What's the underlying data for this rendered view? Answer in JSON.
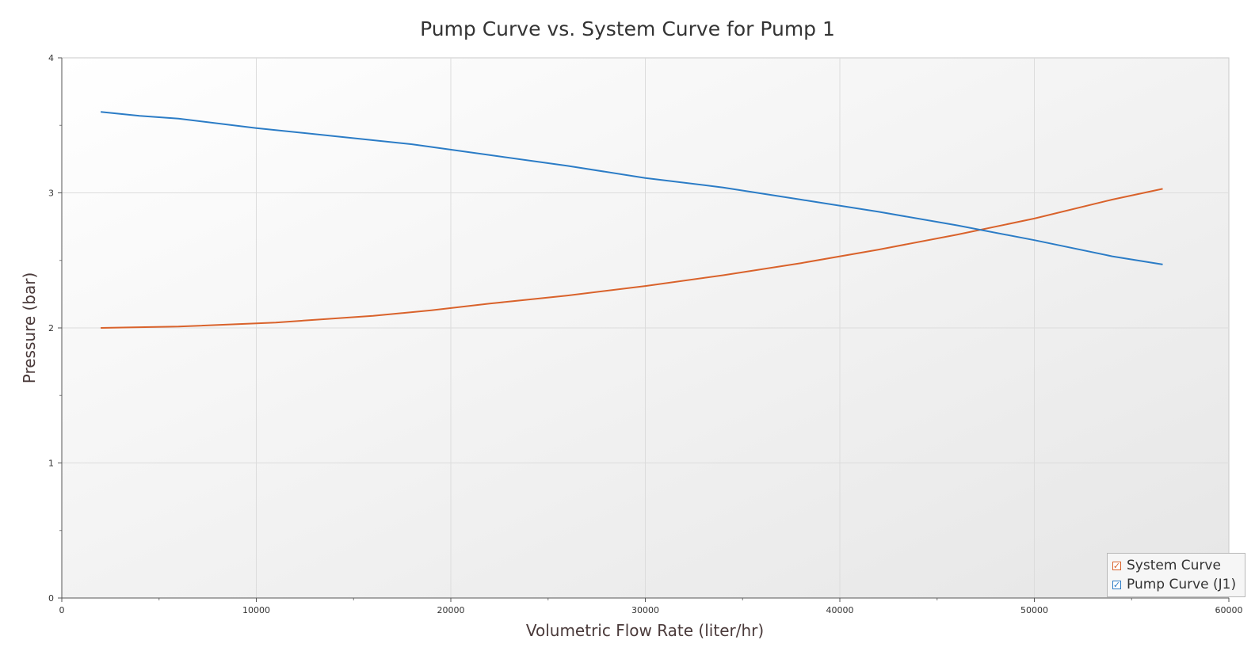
{
  "chart_data": {
    "type": "line",
    "title": "Pump Curve vs. System Curve for Pump 1",
    "xlabel": "Volumetric Flow Rate (liter/hr)",
    "ylabel": "Pressure (bar)",
    "xlim": [
      0,
      60000
    ],
    "ylim": [
      0,
      4
    ],
    "xticks": [
      "0",
      "10000",
      "20000",
      "30000",
      "40000",
      "50000",
      "60000"
    ],
    "yticks": [
      "0",
      "1",
      "2",
      "3",
      "4"
    ],
    "grid": true,
    "legend_position": "bottom-right",
    "series": [
      {
        "name": "System Curve",
        "color": "#d9622b",
        "x": [
          2000,
          6000,
          11000,
          16000,
          19000,
          22000,
          26000,
          30000,
          34000,
          38000,
          42000,
          46000,
          50000,
          54000,
          56600
        ],
        "y": [
          2.0,
          2.01,
          2.04,
          2.09,
          2.13,
          2.18,
          2.24,
          2.31,
          2.39,
          2.48,
          2.58,
          2.69,
          2.81,
          2.95,
          3.03
        ]
      },
      {
        "name": "Pump Curve (J1)",
        "color": "#2b7cc6",
        "x": [
          2000,
          4000,
          6000,
          10000,
          14000,
          18000,
          22000,
          26000,
          30000,
          34000,
          38000,
          42000,
          46000,
          50000,
          54000,
          56600
        ],
        "y": [
          3.6,
          3.57,
          3.55,
          3.48,
          3.42,
          3.36,
          3.28,
          3.2,
          3.11,
          3.04,
          2.95,
          2.86,
          2.76,
          2.65,
          2.53,
          2.47
        ]
      }
    ]
  }
}
